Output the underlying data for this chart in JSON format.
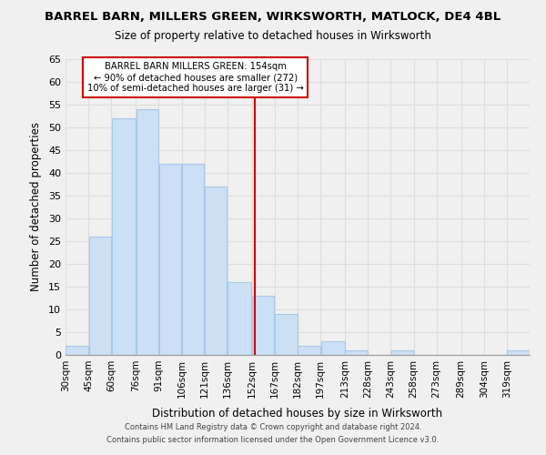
{
  "title": "BARREL BARN, MILLERS GREEN, WIRKSWORTH, MATLOCK, DE4 4BL",
  "subtitle": "Size of property relative to detached houses in Wirksworth",
  "xlabel": "Distribution of detached houses by size in Wirksworth",
  "ylabel": "Number of detached properties",
  "bar_color": "#cce0f5",
  "bar_edge_color": "#a8c8e8",
  "annotation_text_line1": "BARREL BARN MILLERS GREEN: 154sqm",
  "annotation_text_line2": "← 90% of detached houses are smaller (272)",
  "annotation_text_line3": "10% of semi-detached houses are larger (31) →",
  "annotation_box_color": "#ffffff",
  "annotation_box_edge": "#cc0000",
  "vline_color": "#cc0000",
  "footer_line1": "Contains HM Land Registry data © Crown copyright and database right 2024.",
  "footer_line2": "Contains public sector information licensed under the Open Government Licence v3.0.",
  "bins": [
    30,
    45,
    60,
    76,
    91,
    106,
    121,
    136,
    152,
    167,
    182,
    197,
    213,
    228,
    243,
    258,
    273,
    289,
    304,
    319,
    334
  ],
  "counts": [
    2,
    26,
    52,
    54,
    42,
    42,
    37,
    16,
    13,
    9,
    2,
    3,
    1,
    0,
    1,
    0,
    0,
    0,
    0,
    1
  ],
  "vline_x": 154,
  "ylim": [
    0,
    65
  ],
  "yticks": [
    0,
    5,
    10,
    15,
    20,
    25,
    30,
    35,
    40,
    45,
    50,
    55,
    60,
    65
  ],
  "grid_color": "#dddddd",
  "background_color": "#f0f0f0"
}
